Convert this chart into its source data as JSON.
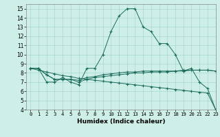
{
  "xlabel": "Humidex (Indice chaleur)",
  "bg_color": "#ceeee8",
  "line_color": "#1a6b5a",
  "grid_color": "#a8d8d0",
  "xlim": [
    -0.5,
    23
  ],
  "ylim": [
    4,
    15.5
  ],
  "xticks": [
    0,
    1,
    2,
    3,
    4,
    5,
    6,
    7,
    8,
    9,
    10,
    11,
    12,
    13,
    14,
    15,
    16,
    17,
    18,
    19,
    20,
    21,
    22,
    23
  ],
  "yticks": [
    4,
    5,
    6,
    7,
    8,
    9,
    10,
    11,
    12,
    13,
    14,
    15
  ],
  "series": [
    [
      8.5,
      8.5,
      7.0,
      7.0,
      7.5,
      7.0,
      6.7,
      8.5,
      8.5,
      10.0,
      12.5,
      14.2,
      15.0,
      15.0,
      13.0,
      12.5,
      11.2,
      11.2,
      10.0,
      8.2,
      8.5,
      7.0,
      6.3,
      4.0
    ],
    [
      8.5,
      8.5,
      7.8,
      7.3,
      7.3,
      7.3,
      7.0,
      7.3,
      7.5,
      7.6,
      7.7,
      7.8,
      7.9,
      8.0,
      8.0,
      8.1,
      8.1,
      8.1,
      8.2,
      8.2,
      8.3,
      8.3,
      8.3,
      8.2
    ],
    [
      8.5,
      8.3,
      8.1,
      7.9,
      7.7,
      7.6,
      7.4,
      7.3,
      7.2,
      7.1,
      7.0,
      6.9,
      6.8,
      6.7,
      6.6,
      6.5,
      6.4,
      6.3,
      6.2,
      6.1,
      6.0,
      5.9,
      5.8,
      4.0
    ],
    [
      8.5,
      8.5,
      7.8,
      7.3,
      7.3,
      7.3,
      7.2,
      7.5,
      7.6,
      7.8,
      7.9,
      8.0,
      8.1,
      8.1,
      8.2,
      8.2,
      8.2,
      8.2,
      8.2,
      8.3,
      8.3,
      8.3,
      8.3,
      8.2
    ]
  ],
  "xtick_fontsize": 5.2,
  "ytick_fontsize": 5.5,
  "xlabel_fontsize": 6.5
}
